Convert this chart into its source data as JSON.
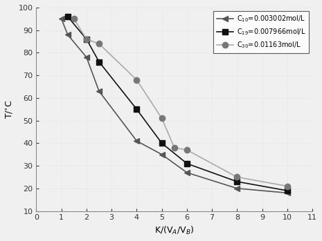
{
  "series": [
    {
      "label": "C$_{10}$=0.003002mol/L",
      "linecolor": "#555555",
      "markercolor": "#555555",
      "marker": "<",
      "markersize": 6,
      "x": [
        1.0,
        1.25,
        2.0,
        2.5,
        4.0,
        5.0,
        6.0,
        8.0,
        10.0
      ],
      "y": [
        95,
        88,
        78,
        63,
        41,
        35,
        27,
        20,
        18
      ]
    },
    {
      "label": "C$_{19}$=0.007966mol/L",
      "linecolor": "#111111",
      "markercolor": "#111111",
      "marker": "s",
      "markersize": 6,
      "x": [
        1.25,
        2.0,
        2.5,
        4.0,
        5.0,
        6.0,
        8.0,
        10.0
      ],
      "y": [
        96,
        86,
        76,
        55,
        40,
        31,
        23,
        19
      ]
    },
    {
      "label": "C$_{30}$=0.01163mol/L",
      "linecolor": "#aaaaaa",
      "markercolor": "#777777",
      "marker": "o",
      "markersize": 6,
      "x": [
        1.5,
        2.0,
        2.5,
        4.0,
        5.0,
        5.5,
        6.0,
        8.0,
        10.0
      ],
      "y": [
        95,
        86,
        84,
        68,
        51,
        38,
        37,
        25,
        21
      ]
    }
  ],
  "xlabel": "K/(V$_A$/V$_B$)",
  "ylabel": "T/$^{\\circ}$C",
  "xlim": [
    0,
    11
  ],
  "ylim": [
    10,
    100
  ],
  "xticks": [
    0,
    1,
    2,
    3,
    4,
    5,
    6,
    7,
    8,
    9,
    10,
    11
  ],
  "yticks": [
    10,
    20,
    30,
    40,
    50,
    60,
    70,
    80,
    90,
    100
  ],
  "background_color": "#f0f0f0",
  "legend_loc": "upper right"
}
